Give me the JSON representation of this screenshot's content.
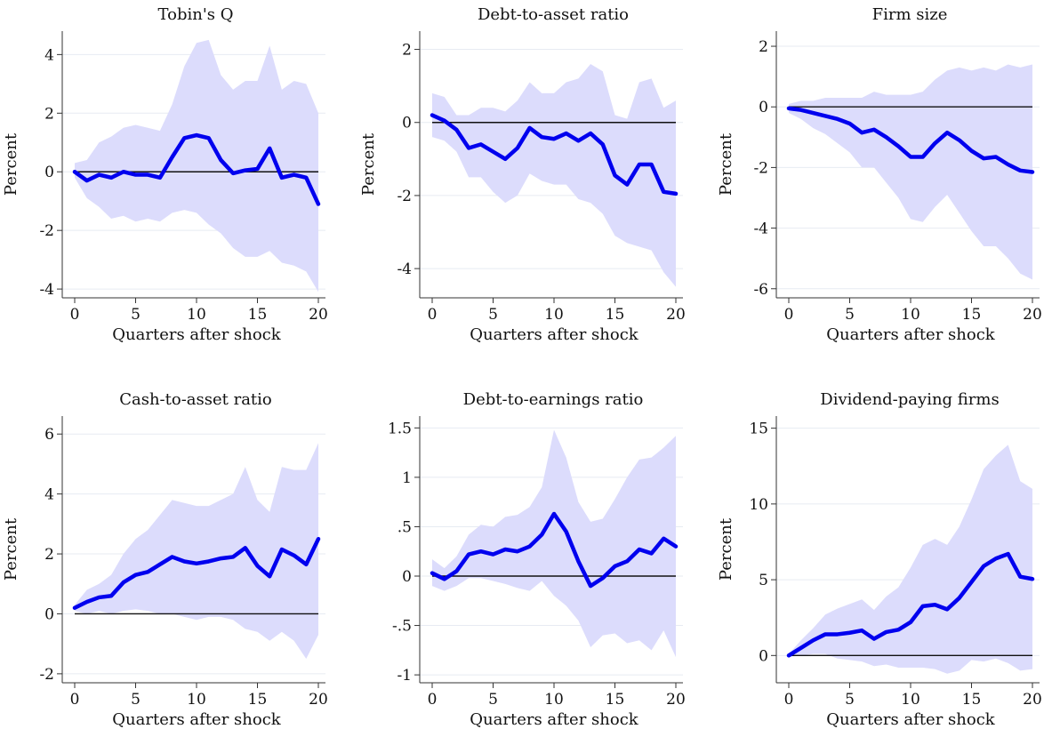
{
  "colors": {
    "line": "#0000ee",
    "band": "#dcdcfc",
    "zero": "#111111",
    "grid": "#e7ebf2"
  },
  "chart_data": [
    {
      "type": "line",
      "title": "Tobin's Q",
      "xlabel": "Quarters after shock",
      "ylabel": "Percent",
      "xlim": [
        0,
        20
      ],
      "ylim": [
        -4.3,
        4.8
      ],
      "xticks": [
        0,
        5,
        10,
        15,
        20
      ],
      "xtick_labels": [
        "0",
        "5",
        "10",
        "15",
        "20"
      ],
      "yticks": [
        -4,
        -2,
        0,
        2,
        4
      ],
      "ytick_labels": [
        "-4",
        "-2",
        "0",
        "2",
        "4"
      ],
      "reference_line": 0,
      "x": [
        0,
        1,
        2,
        3,
        4,
        5,
        6,
        7,
        8,
        9,
        10,
        11,
        12,
        13,
        14,
        15,
        16,
        17,
        18,
        19,
        20
      ],
      "estimate": [
        0.0,
        -0.3,
        -0.1,
        -0.2,
        0.0,
        -0.1,
        -0.1,
        -0.2,
        0.5,
        1.15,
        1.25,
        1.15,
        0.4,
        -0.05,
        0.05,
        0.1,
        0.8,
        -0.2,
        -0.1,
        -0.2,
        -1.1
      ],
      "ci_upper": [
        0.3,
        0.4,
        1.0,
        1.2,
        1.5,
        1.6,
        1.5,
        1.4,
        2.3,
        3.6,
        4.4,
        4.5,
        3.3,
        2.8,
        3.1,
        3.1,
        4.3,
        2.8,
        3.1,
        3.0,
        2.0
      ],
      "ci_lower": [
        -0.2,
        -0.9,
        -1.2,
        -1.6,
        -1.5,
        -1.7,
        -1.6,
        -1.7,
        -1.4,
        -1.3,
        -1.4,
        -1.8,
        -2.1,
        -2.6,
        -2.9,
        -2.9,
        -2.7,
        -3.1,
        -3.2,
        -3.4,
        -4.1
      ]
    },
    {
      "type": "line",
      "title": "Debt-to-asset ratio",
      "xlabel": "Quarters after shock",
      "ylabel": "Percent",
      "xlim": [
        0,
        20
      ],
      "ylim": [
        -4.8,
        2.5
      ],
      "xticks": [
        0,
        5,
        10,
        15,
        20
      ],
      "xtick_labels": [
        "0",
        "5",
        "10",
        "15",
        "20"
      ],
      "yticks": [
        -4,
        -2,
        0,
        2
      ],
      "ytick_labels": [
        "-4",
        "-2",
        "0",
        "2"
      ],
      "reference_line": 0,
      "x": [
        0,
        1,
        2,
        3,
        4,
        5,
        6,
        7,
        8,
        9,
        10,
        11,
        12,
        13,
        14,
        15,
        16,
        17,
        18,
        19,
        20
      ],
      "estimate": [
        0.2,
        0.05,
        -0.2,
        -0.7,
        -0.6,
        -0.8,
        -1.0,
        -0.7,
        -0.15,
        -0.4,
        -0.45,
        -0.3,
        -0.5,
        -0.3,
        -0.6,
        -1.45,
        -1.7,
        -1.15,
        -1.15,
        -1.9,
        -1.95
      ],
      "ci_upper": [
        0.8,
        0.7,
        0.2,
        0.2,
        0.4,
        0.4,
        0.3,
        0.6,
        1.1,
        0.8,
        0.8,
        1.1,
        1.2,
        1.6,
        1.4,
        0.2,
        0.1,
        1.1,
        1.2,
        0.4,
        0.6
      ],
      "ci_lower": [
        -0.4,
        -0.5,
        -0.8,
        -1.5,
        -1.5,
        -1.9,
        -2.2,
        -2.0,
        -1.4,
        -1.6,
        -1.7,
        -1.7,
        -2.1,
        -2.2,
        -2.5,
        -3.1,
        -3.3,
        -3.4,
        -3.5,
        -4.1,
        -4.5
      ]
    },
    {
      "type": "line",
      "title": "Firm size",
      "xlabel": "Quarters after shock",
      "ylabel": "Percent",
      "xlim": [
        0,
        20
      ],
      "ylim": [
        -6.3,
        2.5
      ],
      "xticks": [
        0,
        5,
        10,
        15,
        20
      ],
      "xtick_labels": [
        "0",
        "5",
        "10",
        "15",
        "20"
      ],
      "yticks": [
        -6,
        -4,
        -2,
        0,
        2
      ],
      "ytick_labels": [
        "-6",
        "-4",
        "-2",
        "0",
        "2"
      ],
      "reference_line": 0,
      "x": [
        0,
        1,
        2,
        3,
        4,
        5,
        6,
        7,
        8,
        9,
        10,
        11,
        12,
        13,
        14,
        15,
        16,
        17,
        18,
        19,
        20
      ],
      "estimate": [
        -0.05,
        -0.1,
        -0.2,
        -0.3,
        -0.4,
        -0.55,
        -0.85,
        -0.75,
        -1.0,
        -1.3,
        -1.65,
        -1.65,
        -1.2,
        -0.85,
        -1.1,
        -1.45,
        -1.7,
        -1.65,
        -1.9,
        -2.1,
        -2.15
      ],
      "ci_upper": [
        0.1,
        0.2,
        0.2,
        0.3,
        0.3,
        0.3,
        0.3,
        0.5,
        0.4,
        0.4,
        0.4,
        0.5,
        0.9,
        1.2,
        1.3,
        1.2,
        1.3,
        1.2,
        1.4,
        1.3,
        1.4
      ],
      "ci_lower": [
        -0.2,
        -0.4,
        -0.7,
        -0.9,
        -1.2,
        -1.5,
        -2.0,
        -2.0,
        -2.5,
        -3.0,
        -3.7,
        -3.8,
        -3.3,
        -2.9,
        -3.5,
        -4.1,
        -4.6,
        -4.6,
        -5.0,
        -5.5,
        -5.7
      ]
    },
    {
      "type": "line",
      "title": "Cash-to-asset ratio",
      "xlabel": "Quarters after shock",
      "ylabel": "Percent",
      "xlim": [
        0,
        20
      ],
      "ylim": [
        -2.3,
        6.6
      ],
      "xticks": [
        0,
        5,
        10,
        15,
        20
      ],
      "xtick_labels": [
        "0",
        "5",
        "10",
        "15",
        "20"
      ],
      "yticks": [
        -2,
        0,
        2,
        4,
        6
      ],
      "ytick_labels": [
        "-2",
        "0",
        "2",
        "4",
        "6"
      ],
      "reference_line": 0,
      "x": [
        0,
        1,
        2,
        3,
        4,
        5,
        6,
        7,
        8,
        9,
        10,
        11,
        12,
        13,
        14,
        15,
        16,
        17,
        18,
        19,
        20
      ],
      "estimate": [
        0.2,
        0.4,
        0.55,
        0.6,
        1.05,
        1.3,
        1.4,
        1.65,
        1.9,
        1.75,
        1.68,
        1.75,
        1.85,
        1.9,
        2.2,
        1.6,
        1.25,
        2.15,
        1.95,
        1.65,
        2.5
      ],
      "ci_upper": [
        0.3,
        0.8,
        1.0,
        1.3,
        2.0,
        2.5,
        2.8,
        3.3,
        3.8,
        3.7,
        3.6,
        3.6,
        3.8,
        4.0,
        4.9,
        3.8,
        3.4,
        4.9,
        4.8,
        4.8,
        5.7
      ],
      "ci_lower": [
        0.1,
        0.0,
        0.1,
        0.0,
        0.1,
        0.15,
        0.1,
        0.0,
        0.0,
        -0.1,
        -0.2,
        -0.1,
        -0.1,
        -0.2,
        -0.5,
        -0.6,
        -0.9,
        -0.6,
        -0.9,
        -1.5,
        -0.7
      ]
    },
    {
      "type": "line",
      "title": "Debt-to-earnings ratio",
      "xlabel": "Quarters after shock",
      "ylabel": "",
      "xlim": [
        0,
        20
      ],
      "ylim": [
        -1.08,
        1.62
      ],
      "xticks": [
        0,
        5,
        10,
        15,
        20
      ],
      "xtick_labels": [
        "0",
        "5",
        "10",
        "15",
        "20"
      ],
      "yticks": [
        -1,
        -0.5,
        0,
        0.5,
        1,
        1.5
      ],
      "ytick_labels": [
        "-1",
        "-.5",
        "0",
        ".5",
        "1",
        "1.5"
      ],
      "reference_line": 0,
      "x": [
        0,
        1,
        2,
        3,
        4,
        5,
        6,
        7,
        8,
        9,
        10,
        11,
        12,
        13,
        14,
        15,
        16,
        17,
        18,
        19,
        20
      ],
      "estimate": [
        0.03,
        -0.03,
        0.05,
        0.22,
        0.25,
        0.22,
        0.27,
        0.25,
        0.3,
        0.42,
        0.63,
        0.45,
        0.15,
        -0.1,
        -0.02,
        0.1,
        0.15,
        0.27,
        0.23,
        0.38,
        0.3
      ],
      "ci_upper": [
        0.17,
        0.08,
        0.2,
        0.42,
        0.52,
        0.5,
        0.6,
        0.62,
        0.7,
        0.9,
        1.48,
        1.2,
        0.75,
        0.55,
        0.58,
        0.78,
        1.0,
        1.18,
        1.2,
        1.3,
        1.42
      ],
      "ci_lower": [
        -0.1,
        -0.15,
        -0.1,
        -0.02,
        -0.02,
        -0.05,
        -0.08,
        -0.12,
        -0.15,
        -0.05,
        -0.2,
        -0.3,
        -0.45,
        -0.72,
        -0.6,
        -0.58,
        -0.68,
        -0.65,
        -0.75,
        -0.55,
        -0.82
      ]
    },
    {
      "type": "line",
      "title": "Dividend-paying firms",
      "xlabel": "Quarters after shock",
      "ylabel": "Percent",
      "xlim": [
        0,
        20
      ],
      "ylim": [
        -1.8,
        15.8
      ],
      "xticks": [
        0,
        5,
        10,
        15,
        20
      ],
      "xtick_labels": [
        "0",
        "5",
        "10",
        "15",
        "20"
      ],
      "yticks": [
        0,
        5,
        10,
        15
      ],
      "ytick_labels": [
        "0",
        "5",
        "10",
        "15"
      ],
      "reference_line": 0,
      "x": [
        0,
        1,
        2,
        3,
        4,
        5,
        6,
        7,
        8,
        9,
        10,
        11,
        12,
        13,
        14,
        15,
        16,
        17,
        18,
        19,
        20
      ],
      "estimate": [
        0.0,
        0.5,
        1.0,
        1.4,
        1.4,
        1.5,
        1.65,
        1.1,
        1.55,
        1.7,
        2.2,
        3.25,
        3.35,
        3.05,
        3.8,
        4.85,
        5.9,
        6.4,
        6.7,
        5.2,
        5.05
      ],
      "ci_upper": [
        0.1,
        1.0,
        1.8,
        2.7,
        3.1,
        3.4,
        3.7,
        3.0,
        3.9,
        4.5,
        5.8,
        7.3,
        7.7,
        7.3,
        8.5,
        10.3,
        12.3,
        13.2,
        13.9,
        11.5,
        11.0
      ],
      "ci_lower": [
        -0.1,
        0.0,
        0.1,
        0.1,
        -0.2,
        -0.3,
        -0.4,
        -0.7,
        -0.6,
        -0.8,
        -0.8,
        -0.8,
        -0.9,
        -1.2,
        -1.0,
        -0.3,
        -0.4,
        -0.2,
        -0.5,
        -1.0,
        -0.9
      ]
    }
  ]
}
